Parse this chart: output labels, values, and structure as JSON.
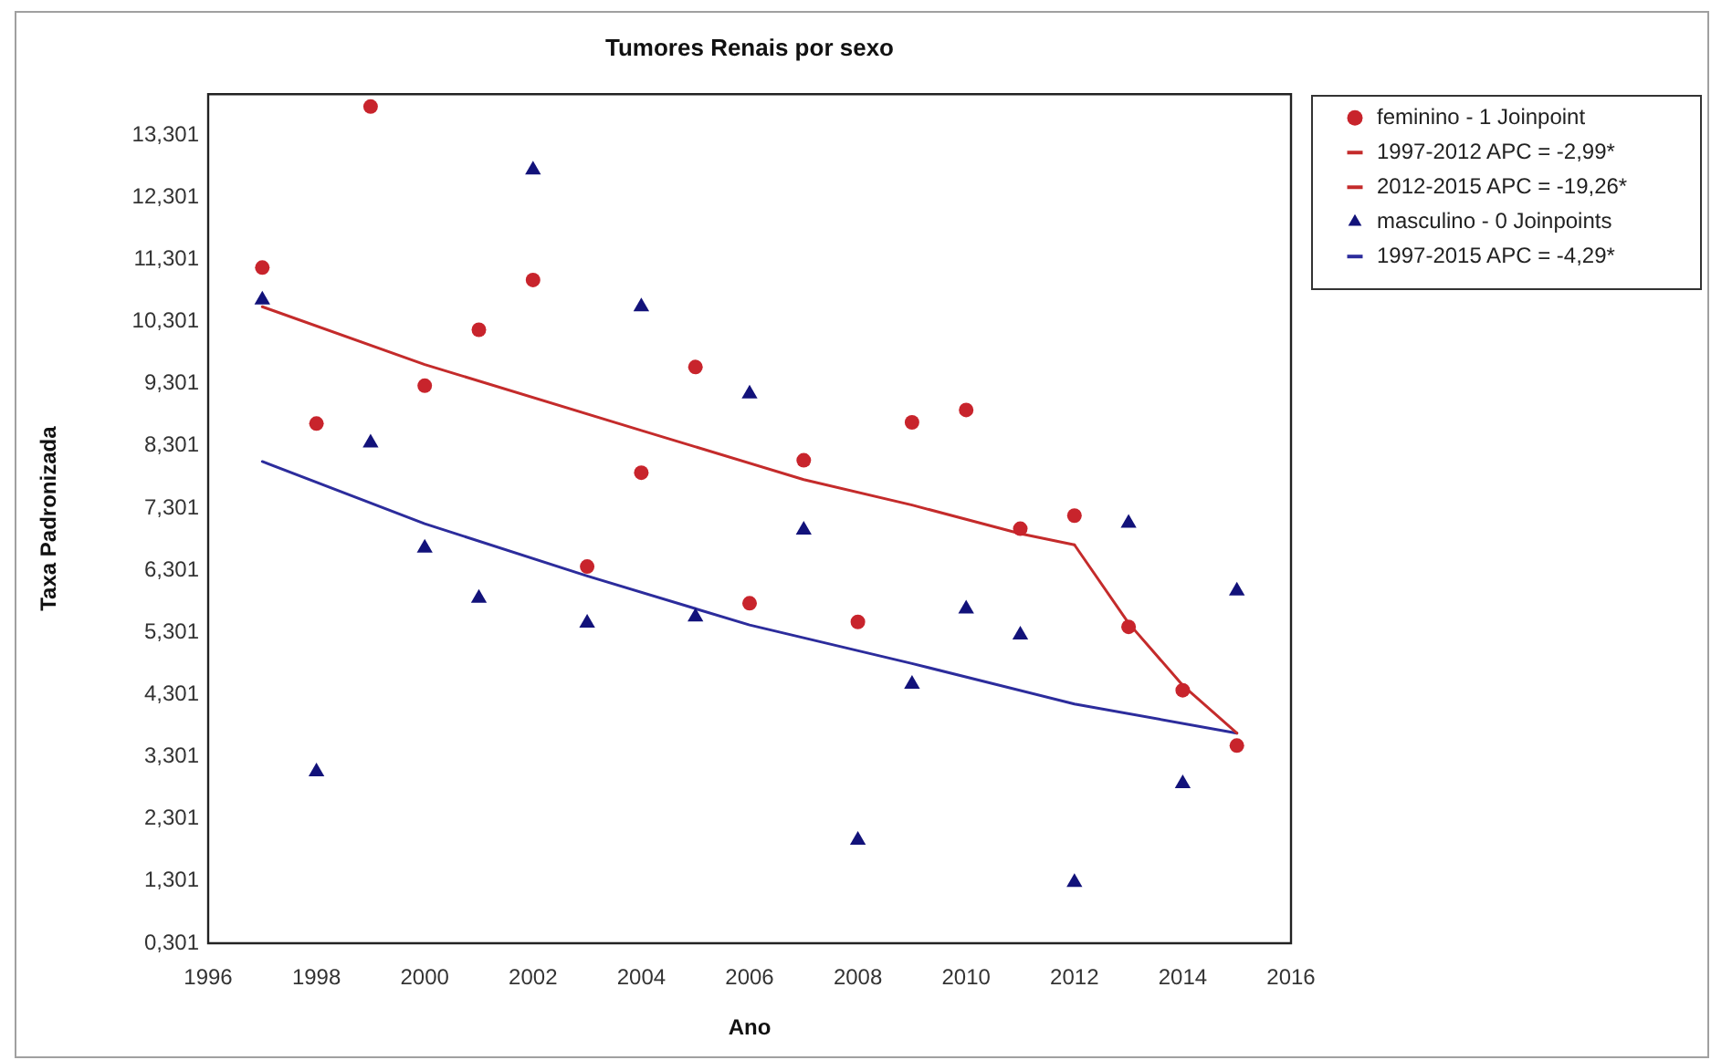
{
  "chart_data": {
    "type": "scatter",
    "title": "Tumores Renais por sexo",
    "xlabel": "Ano",
    "ylabel": "Taxa Padronizada",
    "xlim": [
      1996,
      2016
    ],
    "xticks": [
      1996,
      1998,
      2000,
      2002,
      2004,
      2006,
      2008,
      2010,
      2012,
      2014,
      2016
    ],
    "ylim": [
      0.301,
      13.96
    ],
    "yticks": [
      {
        "value": 0.301,
        "label": "0,301"
      },
      {
        "value": 1.301,
        "label": "1,301"
      },
      {
        "value": 2.301,
        "label": "2,301"
      },
      {
        "value": 3.301,
        "label": "3,301"
      },
      {
        "value": 4.301,
        "label": "4,301"
      },
      {
        "value": 5.301,
        "label": "5,301"
      },
      {
        "value": 6.301,
        "label": "6,301"
      },
      {
        "value": 7.301,
        "label": "7,301"
      },
      {
        "value": 8.301,
        "label": "8,301"
      },
      {
        "value": 9.301,
        "label": "9,301"
      },
      {
        "value": 10.301,
        "label": "10,301"
      },
      {
        "value": 11.301,
        "label": "11,301"
      },
      {
        "value": 12.301,
        "label": "12,301"
      },
      {
        "value": 13.301,
        "label": "13,301"
      }
    ],
    "grid": false,
    "legend": "top right",
    "series": [
      {
        "name": "feminino - 1 Joinpoint",
        "marker": "circle",
        "color": "#c8242c",
        "x": [
          1997,
          1998,
          1999,
          2000,
          2001,
          2002,
          2003,
          2004,
          2005,
          2006,
          2007,
          2008,
          2009,
          2010,
          2011,
          2012,
          2013,
          2014,
          2015
        ],
        "values": [
          11.17,
          8.66,
          13.76,
          9.27,
          10.17,
          10.97,
          6.36,
          7.87,
          9.57,
          5.77,
          8.07,
          5.47,
          8.68,
          8.88,
          6.97,
          7.18,
          5.39,
          4.37,
          3.48
        ]
      },
      {
        "name": "1997-2012 APC = -2,99*",
        "type": "line",
        "marker": "none",
        "color": "#c42b2b",
        "x": [
          1997,
          2000,
          2004,
          2007,
          2009,
          2011,
          2012
        ],
        "values": [
          10.54,
          9.61,
          8.55,
          7.76,
          7.35,
          6.89,
          6.71
        ]
      },
      {
        "name": "2012-2015 APC = -19,26*",
        "type": "line",
        "marker": "none",
        "color": "#c42b2b",
        "x": [
          2012,
          2013,
          2014,
          2015
        ],
        "values": [
          6.71,
          5.45,
          4.45,
          3.68
        ]
      },
      {
        "name": "masculino - 0 Joinpoints",
        "marker": "triangle",
        "color": "#12127a",
        "x": [
          1997,
          1998,
          1999,
          2000,
          2001,
          2002,
          2003,
          2004,
          2005,
          2006,
          2007,
          2008,
          2009,
          2010,
          2011,
          2012,
          2013,
          2014,
          2015
        ],
        "values": [
          10.65,
          3.06,
          8.35,
          6.66,
          5.85,
          12.74,
          5.45,
          10.54,
          5.55,
          9.14,
          6.95,
          1.96,
          4.47,
          5.68,
          5.26,
          1.28,
          7.06,
          2.87,
          5.97
        ]
      },
      {
        "name": "1997-2015 APC = -4,29*",
        "type": "line",
        "marker": "none",
        "color": "#2c2c9c",
        "x": [
          1997,
          2000,
          2003,
          2006,
          2009,
          2012,
          2015
        ],
        "values": [
          8.05,
          7.05,
          6.21,
          5.42,
          4.8,
          4.15,
          3.68
        ]
      }
    ]
  }
}
